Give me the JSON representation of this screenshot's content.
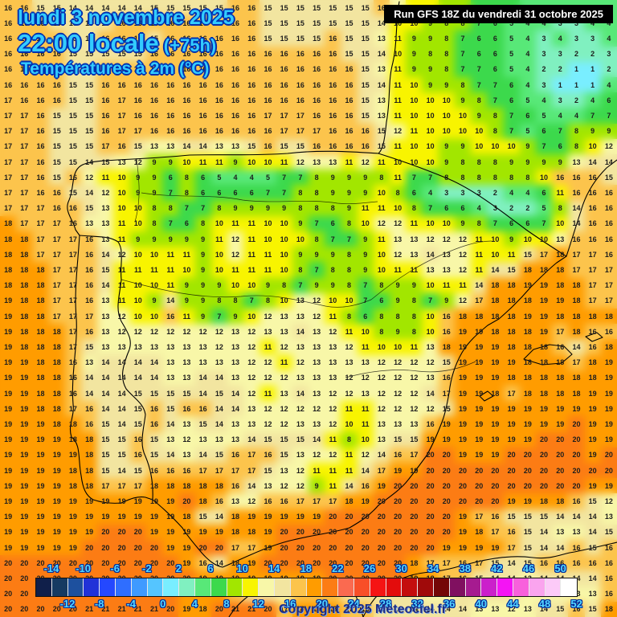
{
  "header": {
    "date_line": "lundi 3 novembre 2025",
    "time_line": "22:00 locale",
    "offset": "(+75h)",
    "subtitle": "Températures à 2m (°C)",
    "run_info": "Run GFS 18Z du vendredi 31 octobre 2025"
  },
  "copyright": "Copyright 2025 Meteociel.fr",
  "colors": {
    "title_fill": "#33ccff",
    "title_outline": "#0030b0",
    "number_color": "#1d1d1d",
    "run_bg": "#000000",
    "run_fg": "#ffffff",
    "copyright_color": "#1b2c86",
    "base_bg": "#f6a83c"
  },
  "scale": {
    "min": -14,
    "max": 52,
    "step": 2,
    "unit": "°C",
    "palette": [
      "#101f4a",
      "#163a62",
      "#1d509e",
      "#2132d8",
      "#2448ff",
      "#2f6eff",
      "#3f9aff",
      "#55c5ff",
      "#79eeff",
      "#80f0c0",
      "#58e878",
      "#3cd94c",
      "#a2e600",
      "#f8f400",
      "#f8f7a8",
      "#f2e5a0",
      "#fcc44c",
      "#ff9c00",
      "#fc7c14",
      "#fa6a50",
      "#f84f28",
      "#f51414",
      "#e30c0c",
      "#c40d0d",
      "#a00a0a",
      "#740707",
      "#801060",
      "#a61b90",
      "#cb20cb",
      "#f414f4",
      "#f860dc",
      "#faa4ee",
      "#fccaf8",
      "#ffffff"
    ],
    "top_labels": [
      -14,
      -10,
      -6,
      -2,
      2,
      6,
      10,
      14,
      18,
      22,
      26,
      30,
      34,
      38,
      42,
      46,
      50
    ],
    "bottom_labels": [
      -12,
      -8,
      -4,
      0,
      4,
      8,
      12,
      16,
      20,
      24,
      28,
      32,
      36,
      40,
      44,
      48,
      52
    ]
  },
  "grid": {
    "cols": 38,
    "rows": 40,
    "values": [
      "16 16 15 15 14 14 14 14 14 15 15 15 15 15 16 16 15 15 15 15 15 15 15 16 13 10 10 9 8 7 7 6 5 5 5 5 5 4",
      "16 16 16 15 15 15 15 16 16 16 16 16 16 16 16 16 15 15 15 15 15 15 15 14 10 10 9 8 8 7 6 5 4 4 3 3 4 4",
      "16 16 16 16 15 15 16 16 16 15 16 16 16 16 16 16 15 15 15 15 16 15 15 13 11 9 9 8 7 6 6 5 4 3 4 3 3 4",
      "16 16 16 16 15 15 15 15 15 16 16 16 16 16 16 16 16 16 16 16 16 15 15 14 10 9 8 8 7 6 6 5 4 3 3 2 2 3",
      "16 16 16 16 15 15 16 16 16 16 16 16 16 16 16 16 16 16 16 16 16 16 15 13 11 9 9 8 7 7 6 5 4 2 2 1 1 2",
      "16 16 16 16 15 15 16 16 16 16 16 16 16 16 16 16 16 16 16 16 16 16 15 14 11 10 9 9 8 7 7 6 4 3 1 1 1 4",
      "17 16 16 16 15 15 16 17 16 16 16 16 16 16 16 16 16 16 16 16 16 16 15 13 11 10 10 10 9 8 7 6 5 4 3 2 4 6",
      "17 17 16 15 15 15 16 17 16 16 16 16 16 16 16 16 17 17 17 16 16 16 15 13 11 10 10 10 10 9 8 7 6 5 4 4 7 7",
      "17 17 16 15 15 15 16 17 17 16 16 16 16 16 16 16 16 17 17 17 16 16 16 15 12 11 10 10 10 10 8 7 5 6 7 8 9 9",
      "17 17 16 15 15 15 17 16 15 13 13 14 14 13 13 15 16 15 15 16 16 16 16 15 11 10 10 9 9 10 10 10 9 7 6 8 10 12",
      "17 17 16 15 15 14 15 13 12 9 9 10 11 11 9 10 10 11 12 13 13 11 12 11 10 10 10 9 8 8 8 9 9 9 9 13 14 14",
      "17 17 16 15 16 12 11 10 9 9 6 8 6 5 4 4 5 7 7 8 9 9 9 8 11 7 7 8 8 8 8 8 8 10 16 16 16 15",
      "17 17 16 16 15 14 12 10 9 9 7 8 6 6 6 6 7 7 8 8 9 9 9 10 8 6 4 3 3 3 2 4 4 6 11 16 16 16",
      "17 17 17 16 16 15 13 10 10 8 8 7 7 8 9 9 9 9 8 8 8 9 11 11 10 8 7 6 6 4 3 2 2 5 8 14 16 16",
      "18 17 17 17 16 13 13 11 10 8 7 6 8 10 11 11 10 10 9 7 6 8 10 12 12 11 10 10 9 8 7 6 6 7 10 14 16 16",
      "18 18 17 17 17 16 13 11 9 9 9 9 9 11 12 11 10 10 10 8 7 7 9 11 13 13 12 12 12 11 10 9 10 10 13 16 16 16",
      "18 18 17 17 17 16 14 12 10 10 11 11 9 10 12 11 11 10 9 9 9 8 9 10 12 13 14 13 12 11 10 11 15 17 18 17 17 16",
      "18 18 18 17 17 16 15 11 11 11 11 10 9 10 11 11 11 10 8 7 8 8 9 10 11 11 13 13 12 11 14 15 18 18 18 17 17 17",
      "18 18 18 17 17 16 14 11 10 10 11 9 9 9 10 10 9 8 7 9 9 8 7 8 9 9 10 11 11 14 18 18 19 19 18 18 17 17",
      "19 18 18 17 17 16 13 11 10 9 14 9 9 8 8 7 8 10 13 12 10 10 7 6 9 8 7 9 12 17 18 18 18 19 19 18 17 17",
      "19 18 18 17 17 17 13 12 10 10 16 11 9 7 9 10 12 13 13 12 11 8 6 8 8 8 10 16 18 18 18 18 19 19 18 18 18 18",
      "19 18 18 18 17 16 13 12 12 12 12 12 12 12 13 12 13 13 14 13 12 11 10 8 9 8 10 16 19 19 18 18 18 19 17 18 16 16",
      "19 18 18 18 17 15 13 13 13 13 13 13 13 12 13 12 11 12 13 13 13 12 11 10 10 11 13 18 19 19 19 18 18 18 16 14 16 18",
      "19 19 18 18 16 13 14 14 14 14 13 13 13 13 13 12 12 11 12 13 13 13 13 12 12 12 12 15 19 19 19 19 18 18 18 17 18 19",
      "19 19 18 18 16 14 14 14 14 14 13 13 14 14 13 12 12 12 13 13 13 12 12 12 12 12 13 16 19 19 19 18 18 18 18 18 18 19",
      "19 19 18 18 16 14 14 14 15 15 15 15 14 15 14 12 11 13 14 13 12 12 13 12 12 12 14 17 19 19 18 17 18 18 18 18 19 19",
      "19 19 18 18 17 16 14 14 15 16 15 16 16 14 14 13 12 12 12 12 12 11 11 12 12 12 12 15 19 19 19 19 19 19 19 19 19 19",
      "19 19 19 18 18 16 15 14 15 16 14 13 15 14 13 13 12 12 13 13 12 10 11 13 13 13 16 19 19 19 19 19 19 19 19 20 19 19",
      "19 19 19 19 18 18 15 15 16 15 13 12 13 13 13 14 15 15 15 14 11 8 10 13 15 15 19 19 19 19 19 19 19 20 20 20 19 19",
      "19 19 19 19 19 18 15 15 16 15 14 13 14 15 16 17 16 15 13 12 12 11 12 14 16 17 20 20 19 19 19 20 20 20 20 20 19 20",
      "19 19 19 19 18 18 15 14 15 16 16 16 17 17 17 17 15 13 12 11 11 11 14 17 19 19 20 20 20 20 20 20 20 20 20 20 20 20",
      "19 19 19 19 18 18 17 17 17 18 18 18 18 18 16 14 13 12 12 9 11 14 16 19 20 20 20 20 20 20 20 20 20 20 20 20 19 19",
      "19 19 19 19 19 19 19 19 19 19 19 20 18 16 13 12 16 16 17 17 17 18 19 20 20 20 20 20 20 20 20 19 19 18 18 16 15 12",
      "19 19 19 19 19 19 19 19 19 19 19 18 15 14 18 19 19 19 19 19 20 20 20 20 20 20 20 20 19 17 16 15 15 15 14 14 14 13",
      "19 19 19 19 19 19 20 20 20 19 19 19 19 19 18 18 19 20 20 20 20 20 20 20 20 20 20 20 19 18 17 16 15 14 13 13 14 15",
      "19 19 19 19 19 20 20 20 20 20 19 19 20 20 17 17 19 20 20 20 20 20 20 20 20 20 20 19 19 19 19 17 15 14 14 16 15 16",
      "20 20 20 20 20 20 20 20 20 20 20 19 16 14 18 19 20 20 20 20 20 20 20 20 20 18 17 17 16 17 15 14 15 16 16 16 16 16",
      "20 20 20 20 20 20 20 20 20 20 20 20 19 19 19 19 19 19 19 19 20 20 20 20 20 19 18 17 16 15 14 14 13 14 14 14 14 16",
      "20 20 20 20 20 20 20 20 20 20 20 19 19 19 17 15 14 13 16 17 16 15 14 14 14 14 13 13 14 14 15 14 13 13 13 13 13 16",
      "20 20 20 20 20 21 21 21 21 21 20 19 18 20 21 21 20 17 18 19 18 17 16 15 14 14 14 14 14 13 13 12 13 14 15 16 15 18"
    ]
  }
}
